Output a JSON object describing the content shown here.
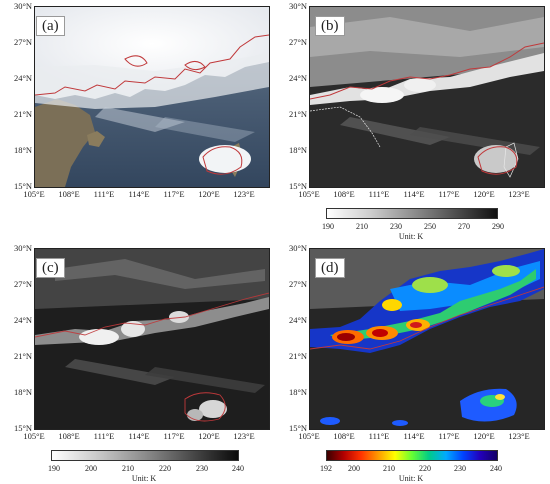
{
  "panels": [
    {
      "tag": "(a)",
      "lat_labels": [
        "30°N",
        "27°N",
        "24°N",
        "21°N",
        "18°N",
        "15°N"
      ],
      "lon_labels": [
        "105°E",
        "108°E",
        "111°E",
        "114°E",
        "117°E",
        "120°E",
        "123°E"
      ]
    },
    {
      "tag": "(b)",
      "lat_labels": [
        "30°N",
        "27°N",
        "24°N",
        "21°N",
        "18°N",
        "15°N"
      ],
      "lon_labels": [
        "105°E",
        "108°E",
        "111°E",
        "114°E",
        "117°E",
        "120°E",
        "123°E"
      ],
      "colorbar": {
        "ticks": [
          "190",
          "210",
          "230",
          "250",
          "270",
          "290"
        ],
        "unit": "Unit: K"
      }
    },
    {
      "tag": "(c)",
      "lat_labels": [
        "30°N",
        "27°N",
        "24°N",
        "21°N",
        "18°N",
        "15°N"
      ],
      "lon_labels": [
        "105°E",
        "108°E",
        "111°E",
        "114°E",
        "117°E",
        "120°E",
        "123°E"
      ],
      "colorbar": {
        "ticks": [
          "190",
          "200",
          "210",
          "220",
          "230",
          "240"
        ],
        "unit": "Unit: K"
      }
    },
    {
      "tag": "(d)",
      "lat_labels": [
        "30°N",
        "27°N",
        "24°N",
        "21°N",
        "18°N",
        "15°N"
      ],
      "lon_labels": [
        "105°E",
        "108°E",
        "111°E",
        "114°E",
        "117°E",
        "120°E",
        "123°E"
      ],
      "colorbar": {
        "ticks": [
          "192",
          "200",
          "210",
          "220",
          "230",
          "240"
        ],
        "unit": "Unit: K"
      }
    }
  ],
  "colors": {
    "contour": "#c0393b",
    "coastline": "#e8e8e8",
    "true_color_land": "#7a6e58",
    "true_color_sea": "#3d5068"
  }
}
